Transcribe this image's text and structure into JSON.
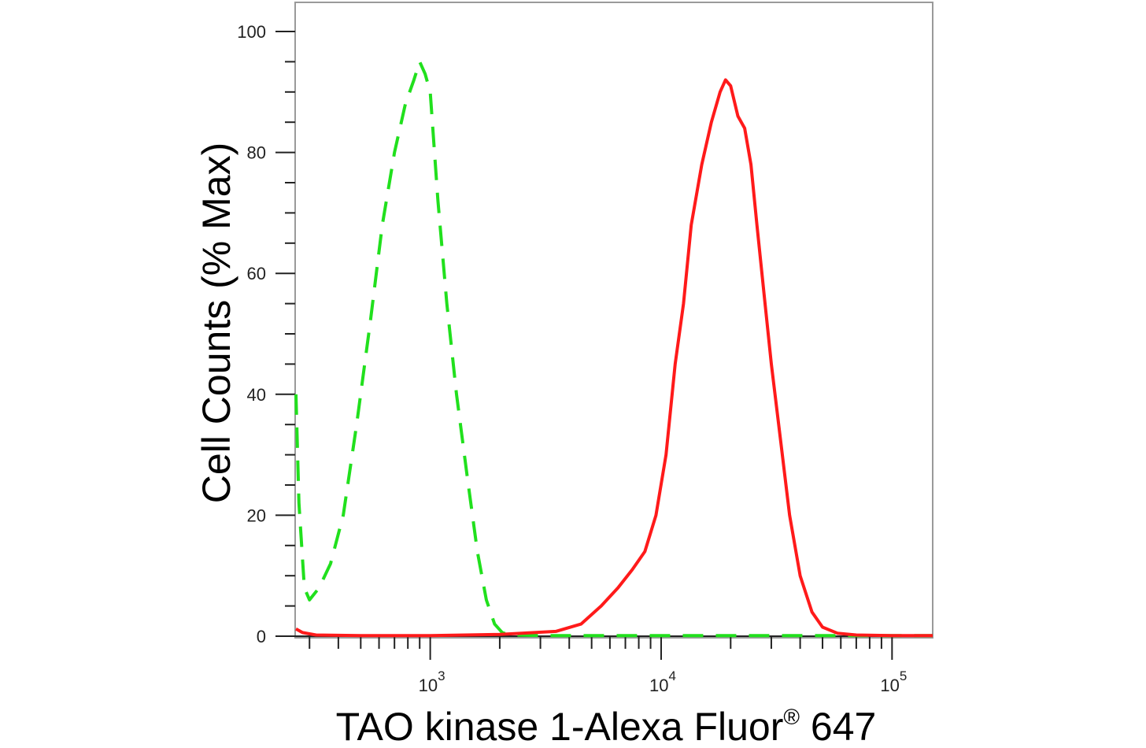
{
  "chart_data": {
    "type": "line",
    "xlabel": "TAO kinase 1-Alexa Fluor",
    "xlabel_superscript": "®",
    "xlabel_suffix": " 647",
    "ylabel": "Cell Counts (% Max)",
    "x_scale": "log",
    "xlim": [
      260,
      150000
    ],
    "ylim": [
      0,
      105
    ],
    "y_ticks": [
      0,
      20,
      40,
      60,
      80,
      100
    ],
    "x_ticks": [
      {
        "base": "10",
        "exp": "3",
        "value": 1000
      },
      {
        "base": "10",
        "exp": "4",
        "value": 10000
      },
      {
        "base": "10",
        "exp": "5",
        "value": 100000
      }
    ],
    "grid": false,
    "legend": "none",
    "series": [
      {
        "color": "#21e01d",
        "style": "dashed",
        "x": [
          262,
          270,
          285,
          300,
          330,
          370,
          420,
          480,
          550,
          620,
          700,
          780,
          850,
          900,
          950,
          1000,
          1080,
          1180,
          1300,
          1450,
          1600,
          1750,
          1900,
          2050,
          2200,
          3000,
          5000,
          10000,
          20000,
          50000,
          100000,
          150000
        ],
        "y": [
          40,
          22,
          8,
          6,
          8,
          12,
          20,
          35,
          52,
          68,
          80,
          88,
          92,
          95,
          93,
          90,
          72,
          55,
          40,
          26,
          14,
          6,
          2,
          0.6,
          0.2,
          0.1,
          0.1,
          0.1,
          0.1,
          0.1,
          0.1,
          0.1
        ]
      },
      {
        "color": "#ff1a1a",
        "style": "solid",
        "x": [
          262,
          280,
          320,
          500,
          1000,
          2000,
          3500,
          4500,
          5500,
          6500,
          7500,
          8500,
          9500,
          10500,
          11500,
          12500,
          13500,
          15000,
          16500,
          18000,
          19000,
          20000,
          21500,
          23000,
          24500,
          26000,
          28000,
          30000,
          33000,
          36000,
          40000,
          45000,
          50000,
          58000,
          70000,
          100000,
          150000
        ],
        "y": [
          1.2,
          0.6,
          0.2,
          0.1,
          0.1,
          0.3,
          0.8,
          2,
          5,
          8,
          11,
          14,
          20,
          30,
          45,
          55,
          68,
          78,
          85,
          90,
          92,
          91,
          86,
          84,
          78,
          68,
          56,
          45,
          32,
          20,
          10,
          4,
          1.5,
          0.5,
          0.2,
          0.1,
          0.1
        ]
      }
    ]
  }
}
